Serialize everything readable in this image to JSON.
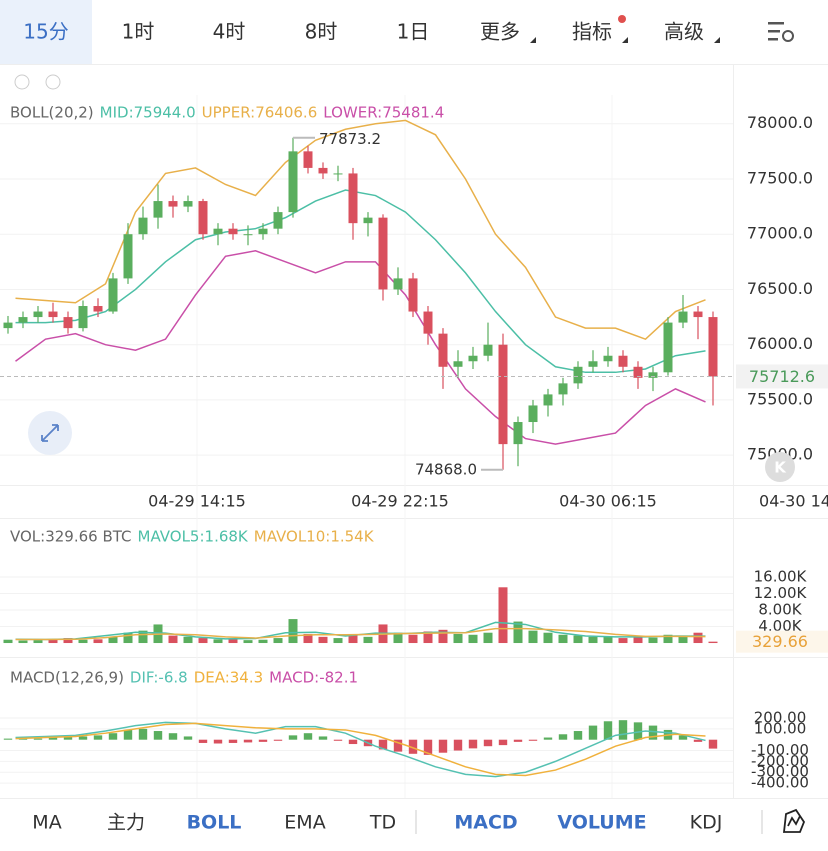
{
  "tabs": [
    "15分",
    "1时",
    "4时",
    "8时",
    "1日",
    "更多",
    "指标",
    "高级"
  ],
  "main": {
    "legend": [
      "BOLL(20,2)",
      "MID:75944.0",
      "UPPER:76406.6",
      "LOWER:75481.4"
    ],
    "ylim": [
      74730,
      78260
    ],
    "yticks": [
      {
        "value": 78000,
        "label": "78000.0"
      },
      {
        "value": 77500,
        "label": "77500.0"
      },
      {
        "value": 77000,
        "label": "77000.0"
      },
      {
        "value": 76500,
        "label": "76500.0"
      },
      {
        "value": 76000,
        "label": "76000.0"
      },
      {
        "value": 75500,
        "label": "75500.0"
      },
      {
        "value": 75000,
        "label": "75000.0"
      }
    ],
    "candles": [
      [
        76150,
        76260,
        76100,
        76200
      ],
      [
        76200,
        76300,
        76150,
        76250
      ],
      [
        76250,
        76350,
        76200,
        76300
      ],
      [
        76300,
        76380,
        76200,
        76250
      ],
      [
        76250,
        76300,
        76100,
        76150
      ],
      [
        76150,
        76400,
        76120,
        76350
      ],
      [
        76350,
        76420,
        76250,
        76300
      ],
      [
        76300,
        76650,
        76280,
        76600
      ],
      [
        76600,
        77100,
        76550,
        77000
      ],
      [
        77000,
        77250,
        76950,
        77150
      ],
      [
        77150,
        77450,
        77050,
        77300
      ],
      [
        77300,
        77350,
        77150,
        77250
      ],
      [
        77250,
        77350,
        77200,
        77300
      ],
      [
        77300,
        77320,
        76950,
        77000
      ],
      [
        77000,
        77100,
        76900,
        77050
      ],
      [
        77050,
        77100,
        76950,
        77000
      ],
      [
        77000,
        77080,
        76900,
        77000
      ],
      [
        77000,
        77100,
        76950,
        77050
      ],
      [
        77050,
        77250,
        77000,
        77200
      ],
      [
        77200,
        77873.2,
        77150,
        77750
      ],
      [
        77750,
        77800,
        77550,
        77600
      ],
      [
        77600,
        77650,
        77500,
        77550
      ],
      [
        77550,
        77620,
        77480,
        77550
      ],
      [
        77550,
        77600,
        76950,
        77100
      ],
      [
        77100,
        77200,
        76980,
        77150
      ],
      [
        77150,
        77180,
        76400,
        76500
      ],
      [
        76500,
        76700,
        76450,
        76600
      ],
      [
        76600,
        76650,
        76250,
        76300
      ],
      [
        76300,
        76350,
        76000,
        76100
      ],
      [
        76100,
        76150,
        75600,
        75800
      ],
      [
        75800,
        75950,
        75700,
        75850
      ],
      [
        75850,
        75980,
        75780,
        75900
      ],
      [
        75900,
        76200,
        75850,
        76000
      ],
      [
        76000,
        76100,
        74868,
        75100
      ],
      [
        75100,
        75350,
        74900,
        75300
      ],
      [
        75300,
        75500,
        75200,
        75450
      ],
      [
        75450,
        75600,
        75350,
        75550
      ],
      [
        75550,
        75700,
        75450,
        75650
      ],
      [
        75650,
        75850,
        75600,
        75800
      ],
      [
        75800,
        75950,
        75750,
        75850
      ],
      [
        75850,
        75980,
        75800,
        75900
      ],
      [
        75900,
        75950,
        75750,
        75800
      ],
      [
        75800,
        75850,
        75600,
        75700
      ],
      [
        75700,
        75800,
        75580,
        75750
      ],
      [
        75750,
        76250,
        75720,
        76200
      ],
      [
        76200,
        76450,
        76150,
        76300
      ],
      [
        76300,
        76350,
        76050,
        76250
      ],
      [
        76250,
        76300,
        75450,
        75712.6
      ]
    ],
    "series": [
      {
        "name": "UPPER",
        "color": "#e8b04a",
        "values": [
          76420,
          76400,
          76380,
          76550,
          77200,
          77550,
          77600,
          77450,
          77350,
          77650,
          77850,
          77950,
          78000,
          78030,
          77900,
          77500,
          77000,
          76700,
          76250,
          76150,
          76150,
          76050,
          76300,
          76406.6
        ]
      },
      {
        "name": "MID",
        "color": "#4cbfa6",
        "values": [
          76200,
          76200,
          76220,
          76300,
          76500,
          76750,
          76950,
          77020,
          77050,
          77150,
          77300,
          77400,
          77350,
          77200,
          76950,
          76650,
          76300,
          76000,
          75800,
          75750,
          75750,
          75780,
          75900,
          75944
        ]
      },
      {
        "name": "LOWER",
        "color": "#c94fa8",
        "values": [
          75850,
          76050,
          76100,
          76000,
          75950,
          76050,
          76450,
          76800,
          76850,
          76750,
          76650,
          76750,
          76750,
          76450,
          76000,
          75600,
          75350,
          75150,
          75100,
          75150,
          75200,
          75450,
          75600,
          75481.4
        ]
      }
    ],
    "high_label": "77873.2",
    "low_label": "74868.0",
    "last_price": {
      "value": 75712.6,
      "label": "75712.6"
    }
  },
  "x_labels": [
    "04-29 14:15",
    "04-29 22:15",
    "04-30 06:15",
    "04-30 14"
  ],
  "volume": {
    "legend": [
      "VOL:329.66 BTC",
      "MAVOL5:1.68K",
      "MAVOL10:1.54K"
    ],
    "ylim": [
      -2900,
      29800
    ],
    "yticks": [
      {
        "value": 16000,
        "label": "16.00K"
      },
      {
        "value": 12000,
        "label": "12.00K"
      },
      {
        "value": 8000,
        "label": "8.00K"
      },
      {
        "value": 4000,
        "label": "4.00K"
      }
    ],
    "values": [
      800,
      600,
      700,
      900,
      1200,
      800,
      900,
      1500,
      2500,
      3000,
      4500,
      1800,
      1500,
      1200,
      900,
      1000,
      700,
      800,
      1200,
      5800,
      2200,
      1500,
      1200,
      2000,
      1500,
      4500,
      2500,
      2000,
      2800,
      3200,
      2200,
      2000,
      2500,
      13500,
      5200,
      3000,
      2500,
      2000,
      1800,
      1500,
      1600,
      1200,
      1500,
      1300,
      2000,
      1800,
      2500,
      329.66
    ],
    "series": [
      {
        "name": "MAVOL5",
        "color": "#4cbfa6",
        "values": [
          900,
          850,
          1000,
          1800,
          2600,
          2400,
          1500,
          1000,
          1100,
          2500,
          2600,
          1700,
          2400,
          2300,
          2600,
          2500,
          5000,
          4500,
          2600,
          1700,
          1500,
          1500,
          1700,
          1680
        ]
      },
      {
        "name": "MAVOL10",
        "color": "#e8b04a",
        "values": [
          850,
          850,
          900,
          1300,
          2000,
          2200,
          2000,
          1500,
          1200,
          1700,
          2000,
          2000,
          2100,
          2300,
          2400,
          2500,
          3500,
          3500,
          3200,
          2800,
          2100,
          1600,
          1600,
          1540
        ]
      }
    ],
    "last": {
      "value": 329.66,
      "label": "329.66"
    }
  },
  "macd": {
    "legend": [
      "MACD(12,26,9)",
      "DIF:-6.8",
      "DEA:34.3",
      "MACD:-82.1"
    ],
    "ylim": [
      -510,
      735
    ],
    "yticks": [
      {
        "value": 200,
        "label": "200.00"
      },
      {
        "value": 100,
        "label": "100.00"
      },
      {
        "value": -100,
        "label": "-100.00"
      },
      {
        "value": -200,
        "label": "-200.00"
      },
      {
        "value": -300,
        "label": "-300.00"
      },
      {
        "value": -400,
        "label": "-400.00"
      }
    ],
    "values": [
      10,
      15,
      10,
      20,
      25,
      30,
      40,
      60,
      90,
      100,
      80,
      60,
      30,
      -30,
      -35,
      -30,
      -25,
      -20,
      -10,
      40,
      60,
      30,
      -10,
      -40,
      -60,
      -90,
      -110,
      -130,
      -140,
      -120,
      -100,
      -80,
      -60,
      -50,
      -20,
      -10,
      20,
      50,
      80,
      130,
      170,
      180,
      160,
      130,
      90,
      40,
      -20,
      -82.1
    ],
    "series": [
      {
        "name": "DIF",
        "color": "#55c1b2",
        "values": [
          20,
          30,
          40,
          80,
          130,
          160,
          150,
          100,
          60,
          120,
          120,
          60,
          -60,
          -150,
          -250,
          -320,
          -340,
          -300,
          -200,
          -80,
          40,
          80,
          60,
          -6.8
        ]
      },
      {
        "name": "DEA",
        "color": "#f0b13c",
        "values": [
          10,
          20,
          30,
          60,
          100,
          140,
          150,
          130,
          110,
          100,
          100,
          90,
          40,
          -50,
          -150,
          -250,
          -320,
          -330,
          -280,
          -180,
          -60,
          20,
          50,
          34.3
        ]
      }
    ]
  },
  "indicator_bar": [
    "MA",
    "主力",
    "BOLL",
    "EMA",
    "TD",
    "MACD",
    "VOLUME",
    "KDJ"
  ]
}
